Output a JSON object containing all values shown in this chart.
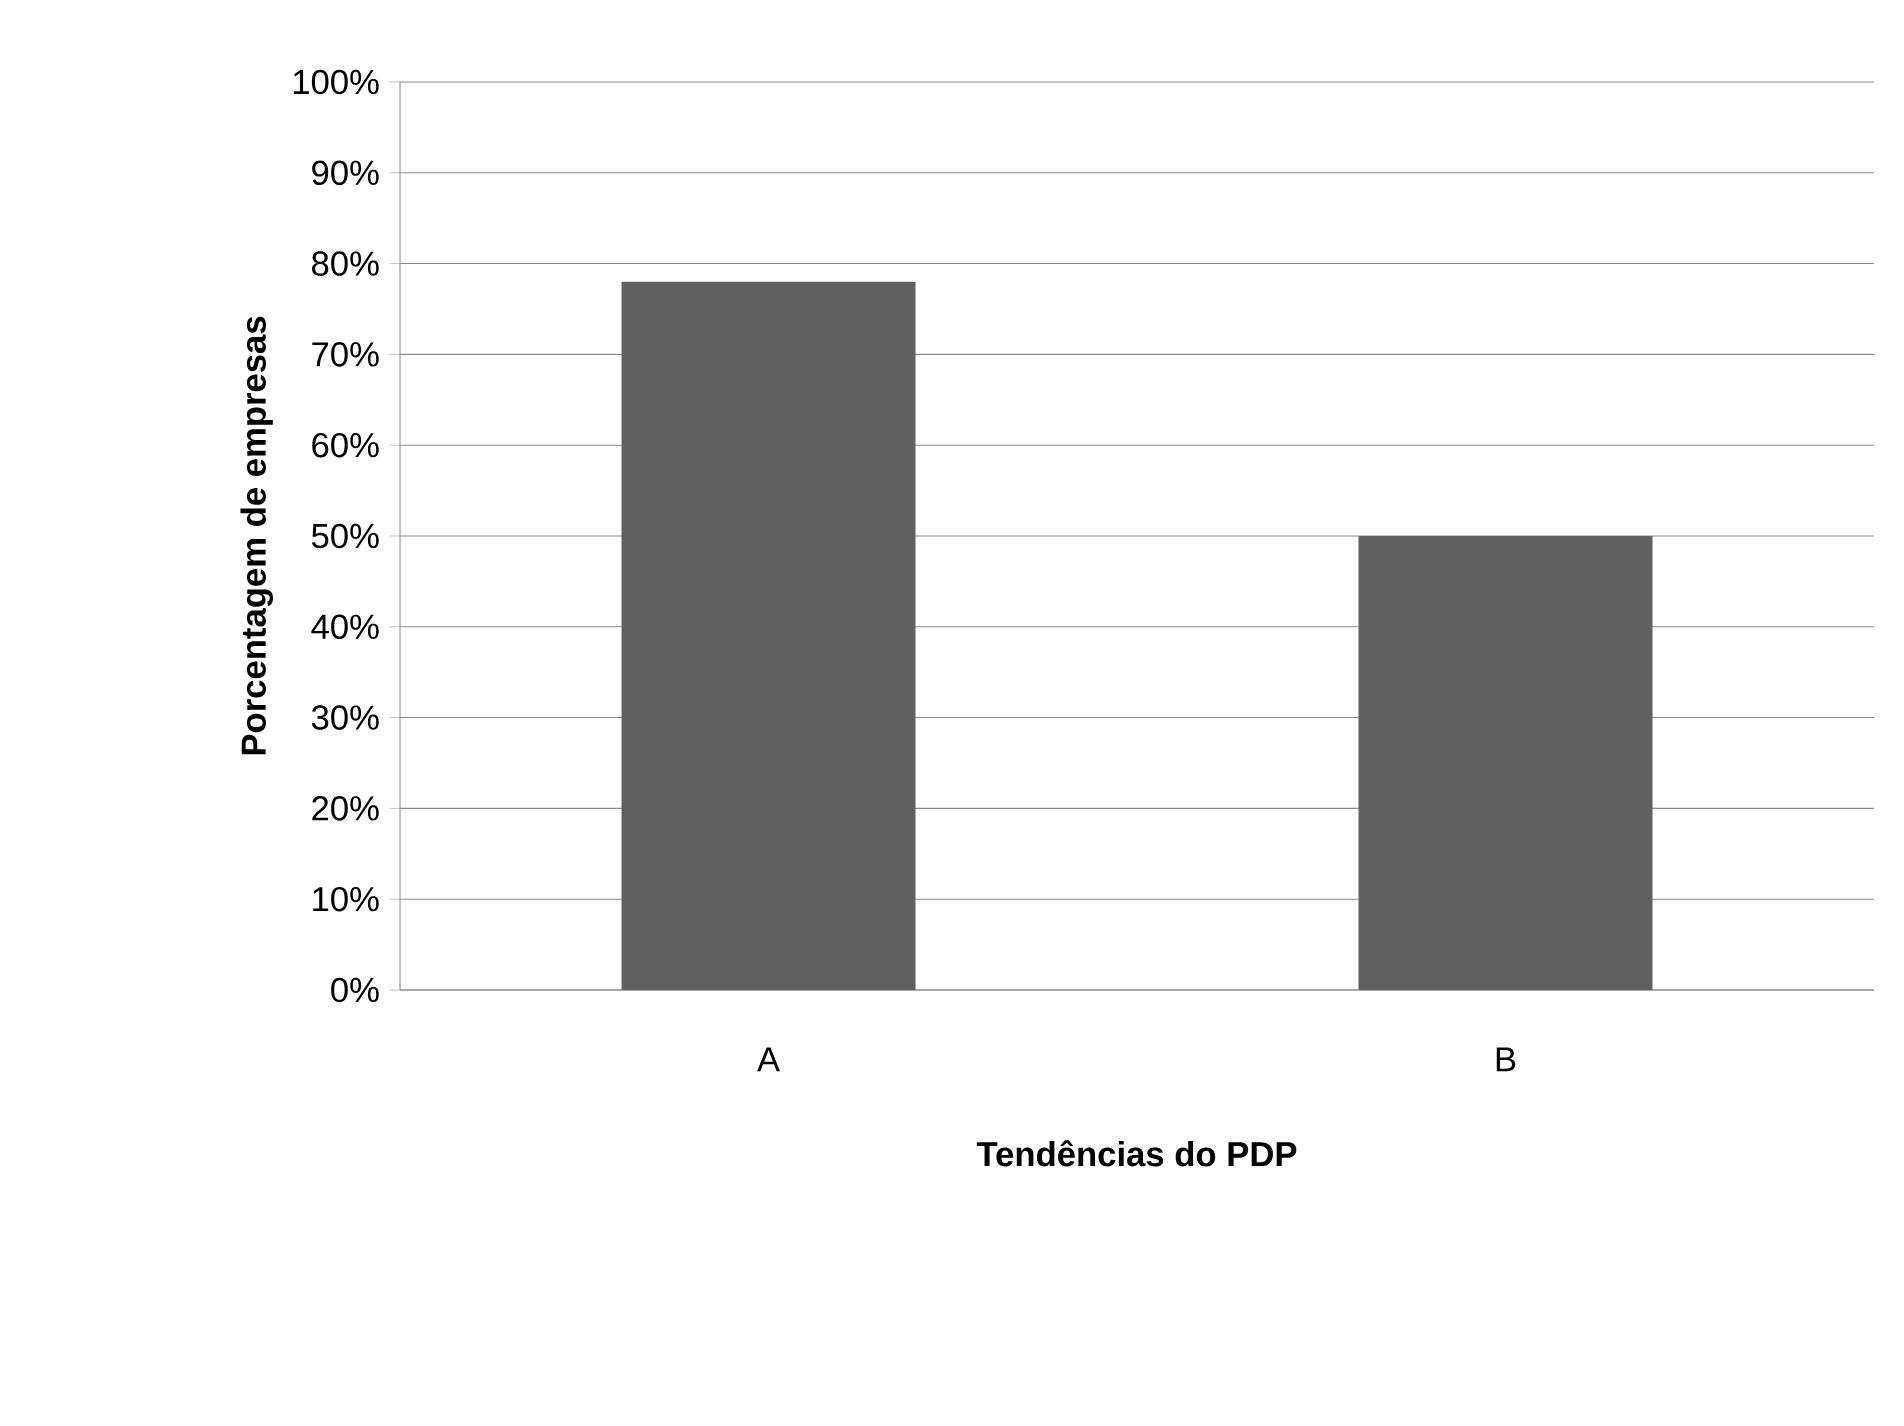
{
  "chart_data": {
    "type": "bar",
    "xlabel": "Tendências do PDP",
    "ylabel": "Porcentagem de empresas",
    "categories": [
      "A",
      "B"
    ],
    "values": [
      78,
      50
    ],
    "color": "#606060",
    "ylim": [
      0,
      100
    ],
    "yticks": [
      {
        "value": 0,
        "label": "0%"
      },
      {
        "value": 10,
        "label": "10%"
      },
      {
        "value": 20,
        "label": "20%"
      },
      {
        "value": 30,
        "label": "30%"
      },
      {
        "value": 40,
        "label": "40%"
      },
      {
        "value": 50,
        "label": "50%"
      },
      {
        "value": 60,
        "label": "60%"
      },
      {
        "value": 70,
        "label": "70%"
      },
      {
        "value": 80,
        "label": "80%"
      },
      {
        "value": 90,
        "label": "90%"
      },
      {
        "value": 100,
        "label": "100%"
      }
    ],
    "grid": "y"
  }
}
